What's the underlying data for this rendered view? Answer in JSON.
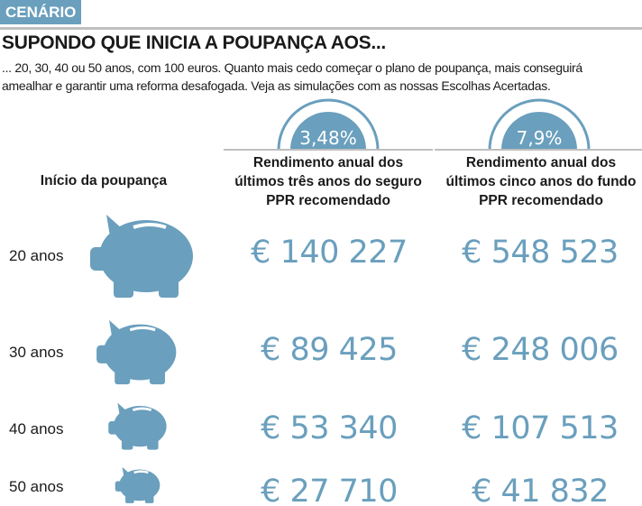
{
  "section_tag": "CENÁRIO",
  "title": "SUPONDO QUE INICIA A POUPANÇA AOS...",
  "intro": "... 20, 30, 40 ou 50 anos, com 100 euros. Quanto mais cedo começar o plano de poupança, mais conseguirá amealhar e garantir uma reforma desafogada. Veja as simulações com as nossas Escolhas Acertadas.",
  "colors": {
    "accent": "#6a9fbd",
    "rule": "#bfbfbf"
  },
  "chart_data": {
    "type": "table",
    "row_header": "Início da poupança",
    "columns": [
      {
        "rate": "3,48%",
        "header": "Rendimento anual dos últimos três anos do seguro PPR recomendado"
      },
      {
        "rate": "7,9%",
        "header": "Rendimento anual dos últimos cinco anos do fundo PPR recomendado"
      }
    ],
    "rows": [
      {
        "label": "20 anos",
        "values": [
          "€ 140 227",
          "€ 548 523"
        ]
      },
      {
        "label": "30 anos",
        "values": [
          "€ 89 425",
          "€ 248 006"
        ]
      },
      {
        "label": "40 anos",
        "values": [
          "€ 53 340",
          "€ 107 513"
        ]
      },
      {
        "label": "50 anos",
        "values": [
          "€ 27 710",
          "€ 41 832"
        ]
      }
    ]
  }
}
